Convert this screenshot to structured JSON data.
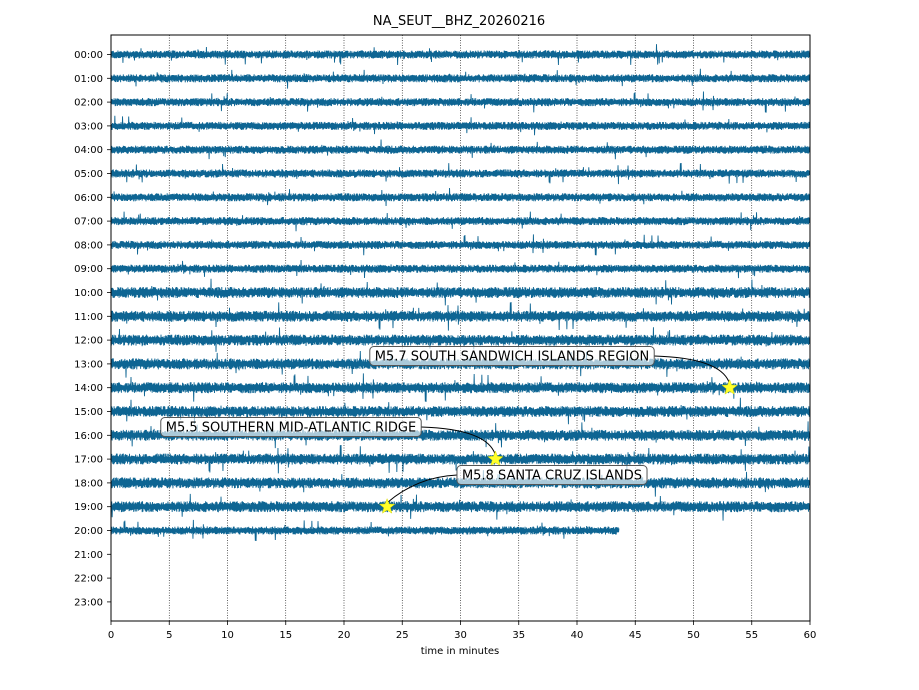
{
  "chart_data": {
    "type": "line",
    "title": "NA_SEUT__BHZ_20260216",
    "xlabel": "time in minutes",
    "ylabel": "",
    "xlim": [
      0,
      60
    ],
    "x_ticks": [
      "0",
      "5",
      "10",
      "15",
      "20",
      "25",
      "30",
      "35",
      "40",
      "45",
      "50",
      "55",
      "60"
    ],
    "y_ticks": [
      "00:00",
      "01:00",
      "02:00",
      "03:00",
      "04:00",
      "05:00",
      "06:00",
      "07:00",
      "08:00",
      "09:00",
      "10:00",
      "11:00",
      "12:00",
      "13:00",
      "14:00",
      "15:00",
      "16:00",
      "17:00",
      "18:00",
      "19:00",
      "20:00",
      "21:00",
      "22:00",
      "23:00"
    ],
    "grid": "vertical dotted",
    "trace_color": "#0e6593",
    "star_color": "#ffff2a",
    "traces": [
      {
        "hour": "00:00",
        "end_minute": 60
      },
      {
        "hour": "01:00",
        "end_minute": 60
      },
      {
        "hour": "02:00",
        "end_minute": 60
      },
      {
        "hour": "03:00",
        "end_minute": 60
      },
      {
        "hour": "04:00",
        "end_minute": 60
      },
      {
        "hour": "05:00",
        "end_minute": 60
      },
      {
        "hour": "06:00",
        "end_minute": 60
      },
      {
        "hour": "07:00",
        "end_minute": 60
      },
      {
        "hour": "08:00",
        "end_minute": 60
      },
      {
        "hour": "09:00",
        "end_minute": 60
      },
      {
        "hour": "10:00",
        "end_minute": 60
      },
      {
        "hour": "11:00",
        "end_minute": 60
      },
      {
        "hour": "12:00",
        "end_minute": 60
      },
      {
        "hour": "13:00",
        "end_minute": 60
      },
      {
        "hour": "14:00",
        "end_minute": 60
      },
      {
        "hour": "15:00",
        "end_minute": 60
      },
      {
        "hour": "16:00",
        "end_minute": 60
      },
      {
        "hour": "17:00",
        "end_minute": 60
      },
      {
        "hour": "18:00",
        "end_minute": 60
      },
      {
        "hour": "19:00",
        "end_minute": 60
      },
      {
        "hour": "20:00",
        "end_minute": 43.6
      }
    ],
    "events": [
      {
        "label": "M5.7 SOUTH SANDWICH ISLANDS REGION",
        "hour": "14:00",
        "minute": 53.1
      },
      {
        "label": "M5.5 SOUTHERN MID-ATLANTIC RIDGE",
        "hour": "17:00",
        "minute": 33.0
      },
      {
        "label": "M5.8 SANTA CRUZ ISLANDS",
        "hour": "19:00",
        "minute": 23.7
      }
    ]
  }
}
